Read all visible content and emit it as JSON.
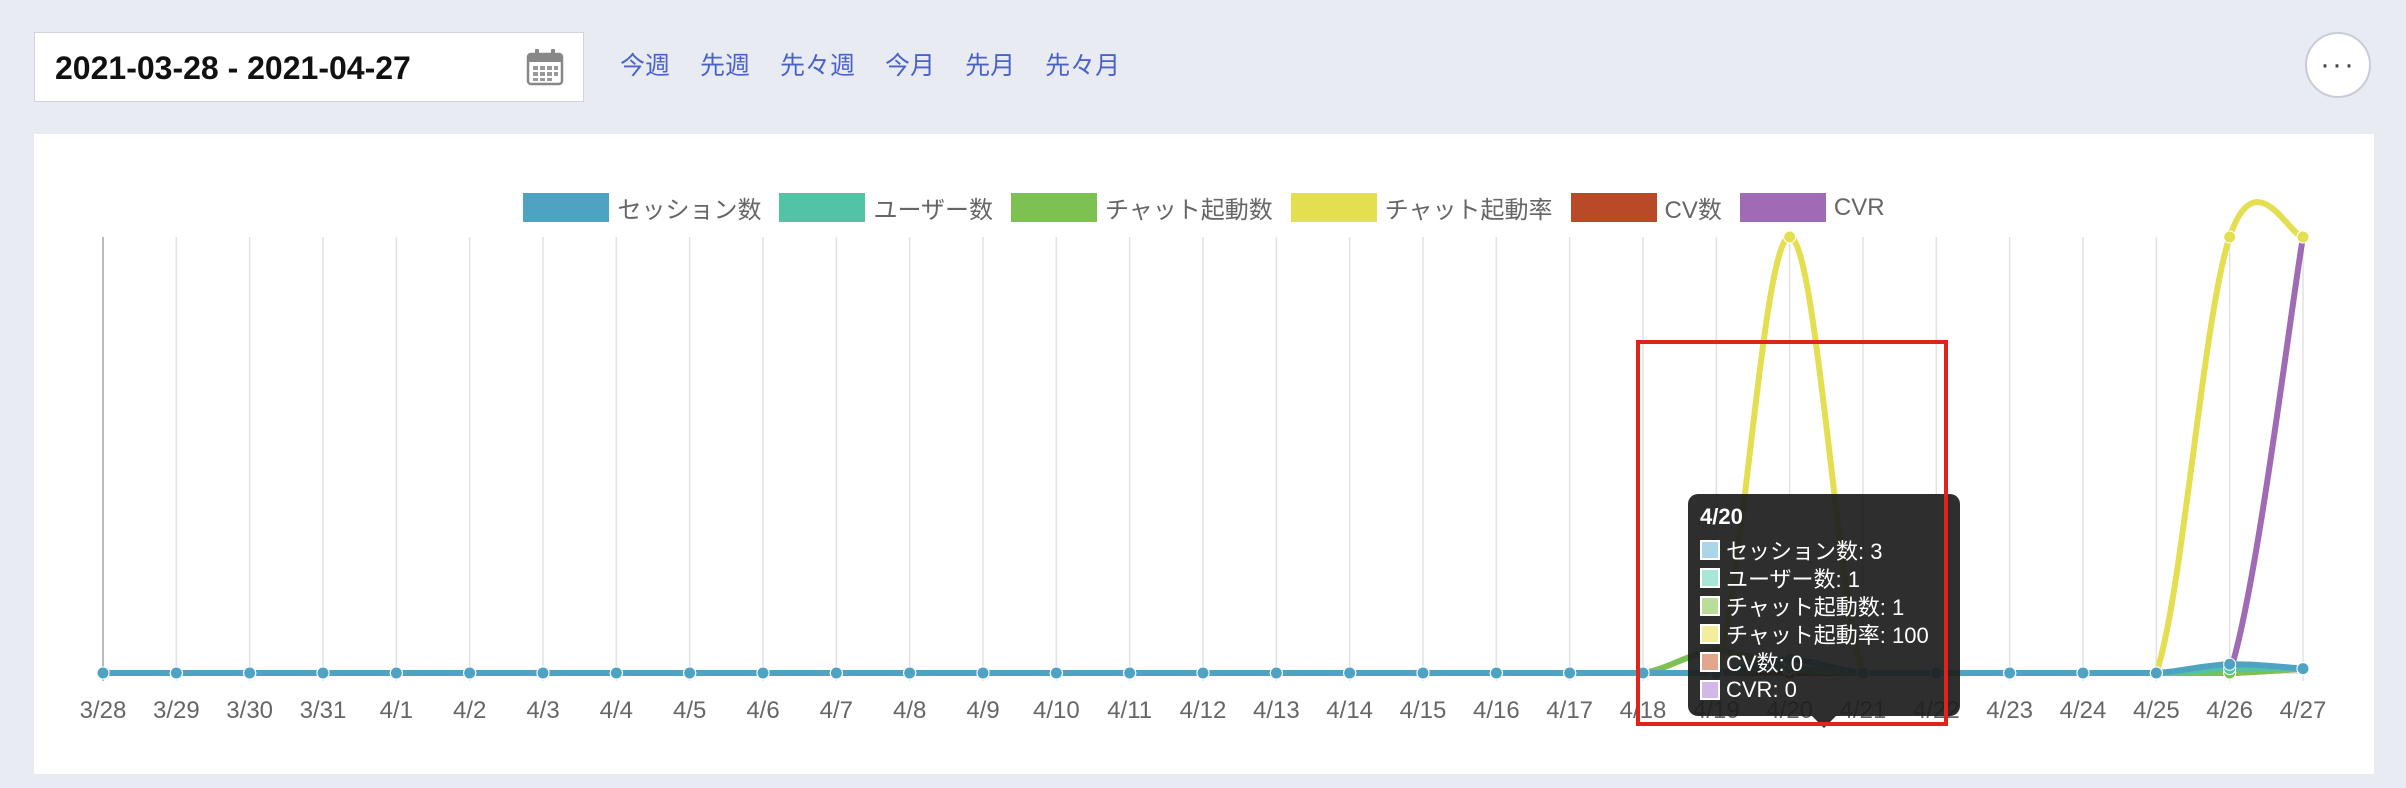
{
  "date_range": "2021-03-28 - 2021-04-27",
  "quick_links": [
    "今週",
    "先週",
    "先々週",
    "今月",
    "先月",
    "先々月"
  ],
  "more_label": "···",
  "tooltip": {
    "title": "4/20",
    "rows": [
      {
        "label": "セッション数: 3",
        "color": "#a9d6e8"
      },
      {
        "label": "ユーザー数: 1",
        "color": "#a8e6d6"
      },
      {
        "label": "チャット起動数: 1",
        "color": "#b8de9a"
      },
      {
        "label": "チャット起動率: 100",
        "color": "#f2ee9e"
      },
      {
        "label": "CV数: 0",
        "color": "#e3a58c"
      },
      {
        "label": "CVR: 0",
        "color": "#d2b8e4"
      }
    ]
  },
  "chart_data": {
    "type": "line",
    "categories": [
      "3/28",
      "3/29",
      "3/30",
      "3/31",
      "4/1",
      "4/2",
      "4/3",
      "4/4",
      "4/5",
      "4/6",
      "4/7",
      "4/8",
      "4/9",
      "4/10",
      "4/11",
      "4/12",
      "4/13",
      "4/14",
      "4/15",
      "4/16",
      "4/17",
      "4/18",
      "4/19",
      "4/20",
      "4/21",
      "4/22",
      "4/23",
      "4/24",
      "4/25",
      "4/26",
      "4/27"
    ],
    "ylim": [
      0,
      100
    ],
    "grid": true,
    "legend_position": "top",
    "series": [
      {
        "name": "セッション数",
        "color": "#4fa3c2",
        "values": [
          0,
          0,
          0,
          0,
          0,
          0,
          0,
          0,
          0,
          0,
          0,
          0,
          0,
          0,
          0,
          0,
          0,
          0,
          0,
          0,
          0,
          0,
          0,
          3,
          0,
          0,
          0,
          0,
          0,
          2,
          1
        ]
      },
      {
        "name": "ユーザー数",
        "color": "#52c3a4",
        "values": [
          0,
          0,
          0,
          0,
          0,
          0,
          0,
          0,
          0,
          0,
          0,
          0,
          0,
          0,
          0,
          0,
          0,
          0,
          0,
          0,
          0,
          0,
          0,
          1,
          0,
          0,
          0,
          0,
          0,
          1,
          1
        ]
      },
      {
        "name": "チャット起動数",
        "color": "#7cc151",
        "values": [
          0,
          0,
          0,
          0,
          0,
          0,
          0,
          0,
          0,
          0,
          0,
          0,
          0,
          0,
          0,
          0,
          0,
          0,
          0,
          0,
          0,
          0,
          5,
          1,
          0,
          0,
          0,
          0,
          0,
          0,
          1
        ]
      },
      {
        "name": "チャット起動率",
        "color": "#e3df51",
        "values": [
          0,
          0,
          0,
          0,
          0,
          0,
          0,
          0,
          0,
          0,
          0,
          0,
          0,
          0,
          0,
          0,
          0,
          0,
          0,
          0,
          0,
          0,
          0,
          100,
          0,
          0,
          0,
          0,
          0,
          100,
          100
        ]
      },
      {
        "name": "CV数",
        "color": "#b84a27",
        "values": [
          0,
          0,
          0,
          0,
          0,
          0,
          0,
          0,
          0,
          0,
          0,
          0,
          0,
          0,
          0,
          0,
          0,
          0,
          0,
          0,
          0,
          0,
          0,
          0,
          0,
          0,
          0,
          0,
          0,
          0,
          1
        ]
      },
      {
        "name": "CVR",
        "color": "#a06ab4",
        "values": [
          0,
          0,
          0,
          0,
          0,
          0,
          0,
          0,
          0,
          0,
          0,
          0,
          0,
          0,
          0,
          0,
          0,
          0,
          0,
          0,
          0,
          0,
          0,
          0,
          0,
          0,
          0,
          0,
          0,
          0,
          100
        ]
      }
    ]
  }
}
